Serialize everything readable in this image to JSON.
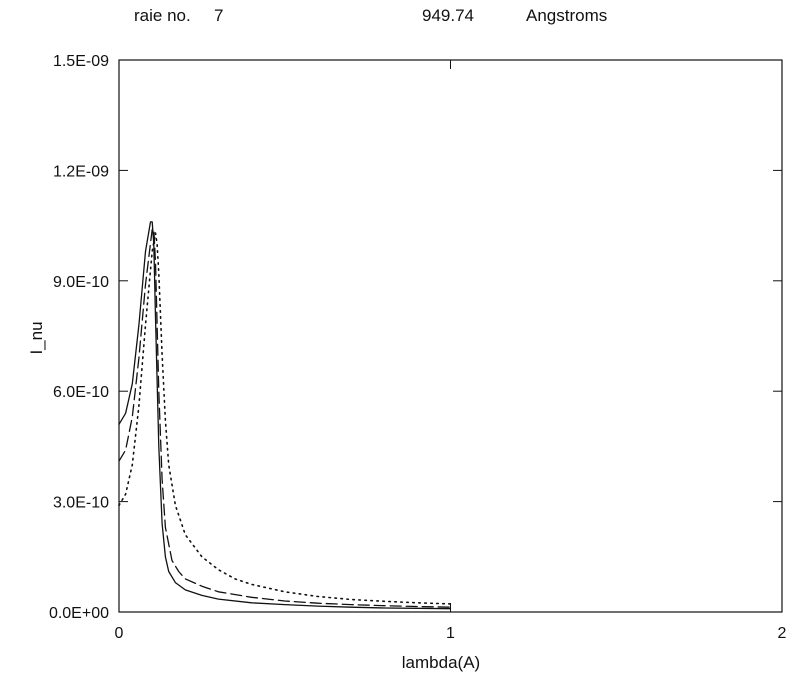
{
  "header": {
    "label": "raie no.",
    "number": "7",
    "wavelength": "949.74",
    "unit": "Angstroms"
  },
  "chart_data": {
    "type": "line",
    "title": "",
    "xlabel": "lambda(A)",
    "ylabel": "I_nu",
    "xlim": [
      0,
      2
    ],
    "ylim": [
      0,
      1.5e-09
    ],
    "x_ticks": [
      "0",
      "1",
      "2"
    ],
    "y_ticks": [
      "0.0E+00",
      "3.0E-10",
      "6.0E-10",
      "9.0E-10",
      "1.2E-09",
      "1.5E-09"
    ],
    "grid": false,
    "series": [
      {
        "style": "solid",
        "x": [
          0,
          0.02,
          0.04,
          0.06,
          0.08,
          0.095,
          0.1,
          0.105,
          0.11,
          0.12,
          0.13,
          0.14,
          0.15,
          0.17,
          0.2,
          0.25,
          0.3,
          0.4,
          0.5,
          0.6,
          0.7,
          0.8,
          0.9,
          1.0
        ],
        "y": [
          5.1e-10,
          5.4e-10,
          6.2e-10,
          7.8e-10,
          9.8e-10,
          1.06e-09,
          1.06e-09,
          1e-09,
          8e-10,
          4.5e-10,
          2.4e-10,
          1.5e-10,
          1.1e-10,
          8e-11,
          6e-11,
          4.5e-11,
          3.5e-11,
          2.5e-11,
          2e-11,
          1.6e-11,
          1.3e-11,
          1.1e-11,
          1e-11,
          9e-12
        ]
      },
      {
        "style": "dashed",
        "x": [
          0,
          0.02,
          0.04,
          0.06,
          0.08,
          0.1,
          0.105,
          0.11,
          0.115,
          0.12,
          0.13,
          0.14,
          0.16,
          0.18,
          0.2,
          0.25,
          0.3,
          0.4,
          0.5,
          0.6,
          0.7,
          0.8,
          0.9,
          1.0
        ],
        "y": [
          4.1e-10,
          4.4e-10,
          5.3e-10,
          6.9e-10,
          8.9e-10,
          1.04e-09,
          1.04e-09,
          9.5e-10,
          7.8e-10,
          6e-10,
          3.6e-10,
          2.3e-10,
          1.4e-10,
          1.1e-10,
          9e-11,
          7e-11,
          5.5e-11,
          4e-11,
          3e-11,
          2.4e-11,
          2e-11,
          1.7e-11,
          1.5e-11,
          1.3e-11
        ]
      },
      {
        "style": "dotted",
        "x": [
          0,
          0.02,
          0.04,
          0.06,
          0.08,
          0.1,
          0.11,
          0.115,
          0.12,
          0.13,
          0.14,
          0.15,
          0.17,
          0.2,
          0.25,
          0.3,
          0.35,
          0.4,
          0.5,
          0.6,
          0.7,
          0.8,
          0.9,
          1.0
        ],
        "y": [
          2.9e-10,
          3.2e-10,
          4e-10,
          5.6e-10,
          7.8e-10,
          9.8e-10,
          1.03e-09,
          1e-09,
          9.2e-10,
          7e-10,
          5.2e-10,
          4e-10,
          2.9e-10,
          2.1e-10,
          1.5e-10,
          1.15e-10,
          9e-11,
          7.5e-11,
          5.5e-11,
          4.2e-11,
          3.4e-11,
          2.9e-11,
          2.5e-11,
          2.2e-11
        ]
      }
    ]
  }
}
